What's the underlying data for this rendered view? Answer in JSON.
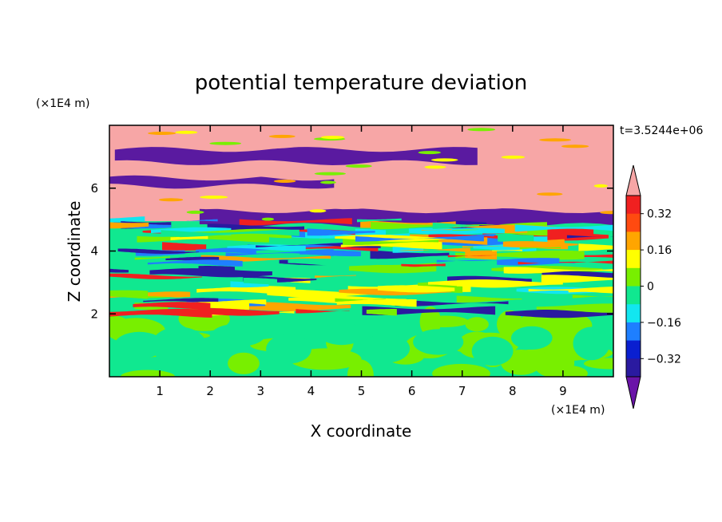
{
  "chart_data": {
    "type": "heatmap",
    "title": "potential temperature deviation",
    "xlabel": "X coordinate",
    "ylabel": "Z coordinate",
    "x_unit": "(×1E4 m)",
    "y_unit": "(×1E4 m)",
    "time_label": "t=3.5244e+06",
    "xlim": [
      0,
      10
    ],
    "ylim": [
      0,
      8
    ],
    "x_ticks": [
      "1",
      "2",
      "3",
      "4",
      "5",
      "6",
      "7",
      "8",
      "9"
    ],
    "y_ticks": [
      "2",
      "4",
      "6"
    ],
    "colorbar": {
      "levels": [
        -0.4,
        -0.32,
        -0.24,
        -0.16,
        -0.08,
        0,
        0.08,
        0.16,
        0.24,
        0.32,
        0.4
      ],
      "labels": [
        "0.32",
        "0.16",
        "0",
        "−0.16",
        "−0.32"
      ],
      "label_values": [
        0.32,
        0.16,
        0,
        -0.16,
        -0.32
      ],
      "colors": [
        "#5a1aa0",
        "#2a1aa0",
        "#0a1fd0",
        "#1e7fff",
        "#12e6f0",
        "#10e890",
        "#78ef00",
        "#ffff00",
        "#ffa500",
        "#ff4a10",
        "#f02020",
        "#f7a6a6"
      ],
      "over_color": "#f7a6a6",
      "under_color": "#6a14a8"
    },
    "regions": [
      {
        "z_range": [
          0,
          2.0
        ],
        "dominant_values": [
          -0.04,
          0.04
        ]
      },
      {
        "z_range": [
          2.0,
          5.0
        ],
        "dominant_values": [
          -0.36,
          -0.2,
          -0.12,
          -0.04,
          0.04,
          0.12,
          0.2,
          0.36
        ]
      },
      {
        "z_range": [
          5.0,
          8.0
        ],
        "dominant_values": [
          -0.5,
          0.5
        ]
      }
    ]
  }
}
